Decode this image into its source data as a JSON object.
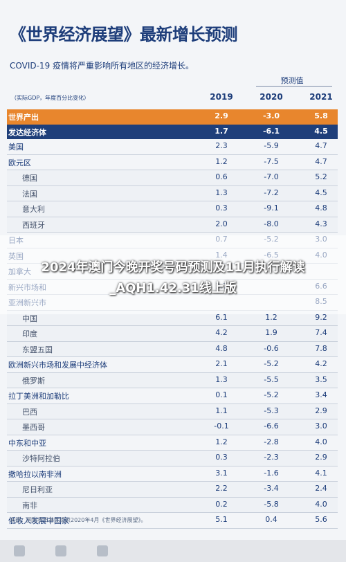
{
  "title": "《世界经济展望》最新增长预测",
  "subtitle": "COVID-19 疫情将严重影响所有地区的经济增长。",
  "projection_label": "预测值",
  "unit_label": "（实际GDP，年度百分比变化）",
  "years": [
    "2019",
    "2020",
    "2021"
  ],
  "rows": [
    {
      "label": "世界产出",
      "v": [
        "2.9",
        "-3.0",
        "5.8"
      ],
      "style": "orange"
    },
    {
      "label": "发达经济体",
      "v": [
        "1.7",
        "-6.1",
        "4.5"
      ],
      "style": "navy"
    },
    {
      "label": "美国",
      "v": [
        "2.3",
        "-5.9",
        "4.7"
      ],
      "style": ""
    },
    {
      "label": "欧元区",
      "v": [
        "1.2",
        "-7.5",
        "4.7"
      ],
      "style": ""
    },
    {
      "label": "德国",
      "v": [
        "0.6",
        "-7.0",
        "5.2"
      ],
      "style": "sub"
    },
    {
      "label": "法国",
      "v": [
        "1.3",
        "-7.2",
        "4.5"
      ],
      "style": "sub"
    },
    {
      "label": "意大利",
      "v": [
        "0.3",
        "-9.1",
        "4.8"
      ],
      "style": "sub"
    },
    {
      "label": "西班牙",
      "v": [
        "2.0",
        "-8.0",
        "4.3"
      ],
      "style": "sub"
    },
    {
      "label": "日本",
      "v": [
        "0.7",
        "-5.2",
        "3.0"
      ],
      "style": ""
    },
    {
      "label": "英国",
      "v": [
        "1.4",
        "-6.5",
        "4.0"
      ],
      "style": ""
    },
    {
      "label": "加拿大",
      "v": [
        "",
        "",
        ""
      ],
      "style": ""
    },
    {
      "label": "新兴市场和",
      "v": [
        "3.7",
        "",
        "6.6"
      ],
      "style": ""
    },
    {
      "label": "亚洲新兴市",
      "v": [
        "",
        "",
        "8.5"
      ],
      "style": ""
    },
    {
      "label": "中国",
      "v": [
        "6.1",
        "1.2",
        "9.2"
      ],
      "style": "sub"
    },
    {
      "label": "印度",
      "v": [
        "4.2",
        "1.9",
        "7.4"
      ],
      "style": "sub"
    },
    {
      "label": "东盟五国",
      "v": [
        "4.8",
        "-0.6",
        "7.8"
      ],
      "style": "sub"
    },
    {
      "label": "欧洲新兴市场和发展中经济体",
      "v": [
        "2.1",
        "-5.2",
        "4.2"
      ],
      "style": ""
    },
    {
      "label": "俄罗斯",
      "v": [
        "1.3",
        "-5.5",
        "3.5"
      ],
      "style": "sub"
    },
    {
      "label": "拉丁美洲和加勒比",
      "v": [
        "0.1",
        "-5.2",
        "3.4"
      ],
      "style": ""
    },
    {
      "label": "巴西",
      "v": [
        "1.1",
        "-5.3",
        "2.9"
      ],
      "style": "sub"
    },
    {
      "label": "墨西哥",
      "v": [
        "-0.1",
        "-6.6",
        "3.0"
      ],
      "style": "sub"
    },
    {
      "label": "中东和中亚",
      "v": [
        "1.2",
        "-2.8",
        "4.0"
      ],
      "style": ""
    },
    {
      "label": "沙特阿拉伯",
      "v": [
        "0.3",
        "-2.3",
        "2.9"
      ],
      "style": "sub"
    },
    {
      "label": "撒哈拉以南非洲",
      "v": [
        "3.1",
        "-1.6",
        "4.1"
      ],
      "style": ""
    },
    {
      "label": "尼日利亚",
      "v": [
        "2.2",
        "-3.4",
        "2.4"
      ],
      "style": "sub"
    },
    {
      "label": "南非",
      "v": [
        "0.2",
        "-5.8",
        "4.0"
      ],
      "style": "sub"
    },
    {
      "label": "低收入发展中国家",
      "v": [
        "5.1",
        "0.4",
        "5.6"
      ],
      "style": ""
    }
  ],
  "source": "来源：国际货币基金组织2020年4月《世界经济展望》。",
  "overlay_text": "2024年澳门今晚开奖号码预测及11月执行解读_AQH1.42.31线上版"
}
